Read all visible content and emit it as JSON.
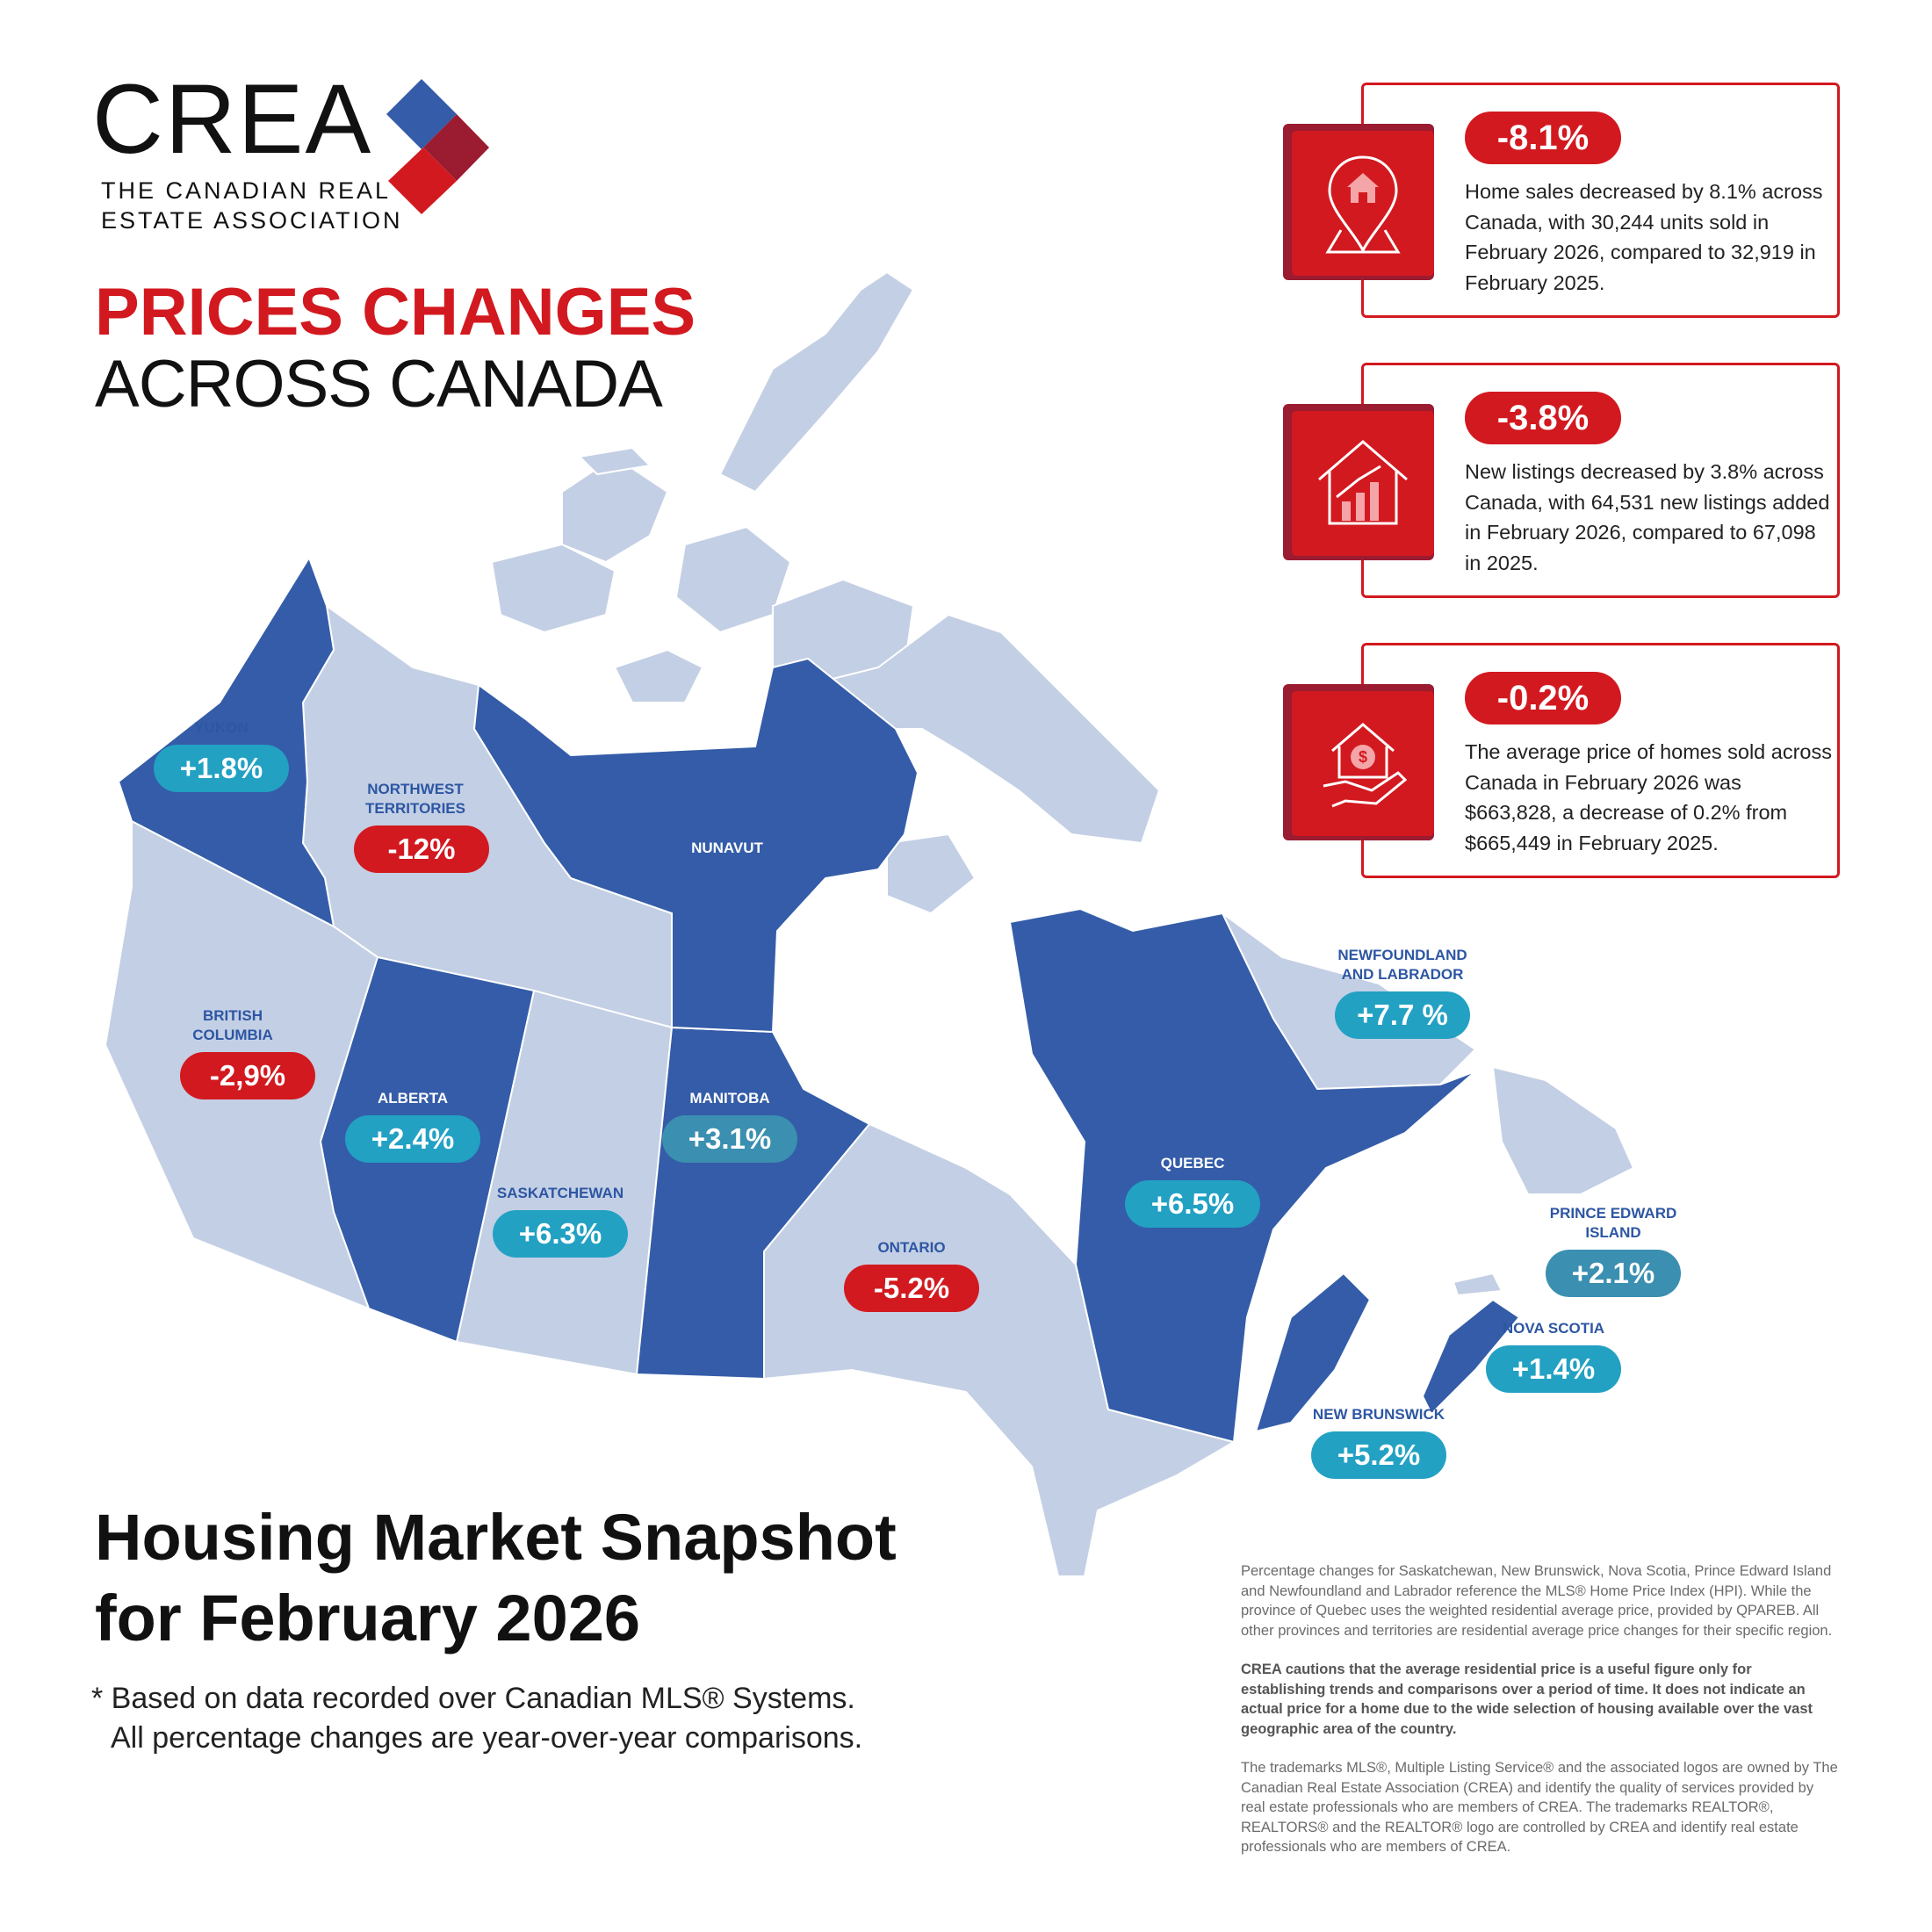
{
  "logo": {
    "name": "CREA",
    "subtitle_line1": "THE CANADIAN REAL",
    "subtitle_line2": "ESTATE ASSOCIATION"
  },
  "title": {
    "line1": "PRICES CHANGES",
    "line2": "ACROSS CANADA"
  },
  "cards": [
    {
      "icon": "map-pin-house-icon",
      "value": "-8.1%",
      "text": "Home sales decreased by 8.1% across Canada, with 30,244 units sold in February 2026, compared to 32,919 in February 2025."
    },
    {
      "icon": "house-chart-icon",
      "value": "-3.8%",
      "text": "New listings decreased by 3.8% across Canada, with 64,531 new listings added in February 2026, compared to 67,098 in 2025."
    },
    {
      "icon": "hand-house-dollar-icon",
      "value": "-0.2%",
      "text": "The average price of homes sold across Canada in February 2026 was $663,828, a decrease of 0.2% from $665,449 in February 2025."
    }
  ],
  "regions": {
    "yukon": {
      "label": "YUKON",
      "value": "+1.8%"
    },
    "nwt": {
      "label": "NORTHWEST TERRITORIES",
      "value": "-12%"
    },
    "nunavut": {
      "label": "NUNAVUT"
    },
    "bc": {
      "label": "BRITISH COLUMBIA",
      "value": "-2,9%"
    },
    "alberta": {
      "label": "ALBERTA",
      "value": "+2.4%"
    },
    "saskatchewan": {
      "label": "SASKATCHEWAN",
      "value": "+6.3%"
    },
    "manitoba": {
      "label": "MANITOBA",
      "value": "+3.1%"
    },
    "ontario": {
      "label": "ONTARIO",
      "value": "-5.2%"
    },
    "quebec": {
      "label": "QUEBEC",
      "value": "+6.5%"
    },
    "nl": {
      "label": "NEWFOUNDLAND AND LABRADOR",
      "value": "+7.7 %"
    },
    "pei": {
      "label": "PRINCE EDWARD ISLAND",
      "value": "+2.1%"
    },
    "ns": {
      "label": "NOVA SCOTIA",
      "value": "+1.4%"
    },
    "nb": {
      "label": "NEW BRUNSWICK",
      "value": "+5.2%"
    }
  },
  "headline": {
    "line1": "Housing Market Snapshot",
    "line2": "for February 2026"
  },
  "footnote": {
    "line1": "* Based on data recorded over Canadian MLS® Systems.",
    "line2": "All percentage changes are year-over-year comparisons."
  },
  "legal": [
    "Percentage changes for Saskatchewan, New Brunswick, Nova Scotia, Prince Edward Island and Newfoundland and Labrador reference the MLS® Home Price Index (HPI). While the province of Quebec uses the weighted residential average price, provided by QPAREB. All other provinces and territories are residential average price changes for their specific region.",
    "CREA cautions that the average residential price is a useful figure only for establishing trends and comparisons over a period of time. It does not indicate an actual price for a home due to the wide selection of housing available over the vast geographic area of the country.",
    "The trademarks MLS®, Multiple Listing Service® and the associated logos are owned by The Canadian Real Estate Association (CREA) and identify the quality of services provided by real estate professionals who are members of CREA. The trademarks REALTOR®, REALTORS® and the REALTOR® logo are controlled by CREA and identify real estate professionals who are members of CREA."
  ],
  "colors": {
    "red": "#d2191f",
    "dark_red": "#9b1b30",
    "dark_blue": "#345ca8",
    "light_blue": "#c3cfe4",
    "teal": "#22a1c3"
  }
}
